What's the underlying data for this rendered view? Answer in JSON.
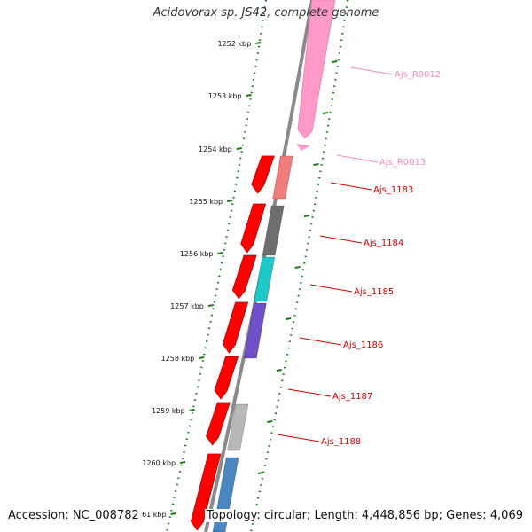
{
  "title": "Acidovorax sp. JS42, complete genome",
  "footer": {
    "accession": "Accession: NC_008782",
    "topology": "Topology: circular; Length: 4,448,856 bp; Genes: 4,069"
  },
  "scale_labels": [
    "1252 kbp",
    "1253 kbp",
    "1254 kbp",
    "1255 kbp",
    "1256 kbp",
    "1257 kbp",
    "1258 kbp",
    "1259 kbp",
    "1260 kbp",
    "1261 kbp"
  ],
  "colors": {
    "backbone": "#8a8a8a",
    "scale_ticks": "#1a7a1a",
    "forward_gene": "#ff0000",
    "rna_gene": "#ff99cc"
  },
  "features": [
    {
      "label": "Ajs_R0012",
      "color": "#ff9ac8",
      "label_color": "#f08cc0"
    },
    {
      "label": "Ajs_R0013",
      "color": "#ff9ac8",
      "label_color": "#f08cc0"
    },
    {
      "label": "Ajs_1183",
      "color": "#f07c7c",
      "label_color": "#cc0000"
    },
    {
      "label": "Ajs_1184",
      "color": "#6e6e6e",
      "label_color": "#cc0000"
    },
    {
      "label": "Ajs_1185",
      "color": "#1ec8c8",
      "label_color": "#cc0000"
    },
    {
      "label": "Ajs_1186",
      "color": "#7050c8",
      "label_color": "#cc0000"
    },
    {
      "label": "Ajs_1187",
      "color": "#ff0000",
      "label_color": "#cc0000"
    },
    {
      "label": "Ajs_1188",
      "color": "#b8b8b8",
      "label_color": "#cc0000"
    },
    {
      "label": "",
      "color": "#4a86c0",
      "label_color": "#cc0000"
    }
  ]
}
